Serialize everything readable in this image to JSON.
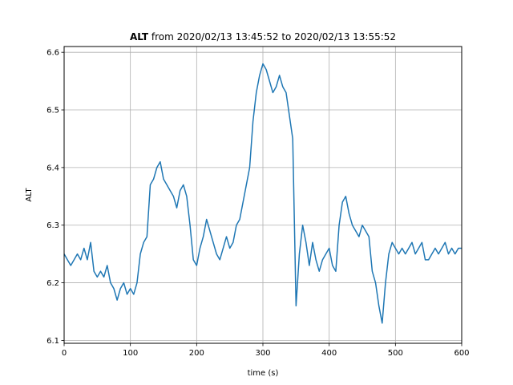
{
  "chart_data": {
    "type": "line",
    "title_bold": "ALT",
    "title_rest": " from 2020/02/13 13:45:52 to 2020/02/13 13:55:52",
    "xlabel": "time (s)",
    "ylabel": "ALT",
    "xlim": [
      0,
      600
    ],
    "ylim": [
      6.095,
      6.61
    ],
    "grid": true,
    "xticks": [
      0,
      100,
      200,
      300,
      400,
      500,
      600
    ],
    "xtick_labels": [
      "0",
      "100",
      "200",
      "300",
      "400",
      "500",
      "600"
    ],
    "yticks": [
      6.1,
      6.2,
      6.3,
      6.4,
      6.5,
      6.6
    ],
    "ytick_labels": [
      "6.1",
      "6.2",
      "6.3",
      "6.4",
      "6.5",
      "6.6"
    ],
    "line_color": "#1f77b4",
    "series": [
      {
        "x": [
          0,
          5,
          10,
          15,
          20,
          25,
          30,
          35,
          40,
          45,
          50,
          55,
          60,
          65,
          70,
          75,
          80,
          85,
          90,
          95,
          100,
          105,
          110,
          115,
          120,
          125,
          130,
          135,
          140,
          145,
          150,
          155,
          160,
          165,
          170,
          175,
          180,
          185,
          190,
          195,
          200,
          205,
          210,
          215,
          220,
          225,
          230,
          235,
          240,
          245,
          250,
          255,
          260,
          265,
          270,
          275,
          280,
          285,
          290,
          295,
          300,
          305,
          310,
          315,
          320,
          325,
          330,
          335,
          340,
          345,
          350,
          355,
          360,
          365,
          370,
          375,
          380,
          385,
          390,
          395,
          400,
          405,
          410,
          415,
          420,
          425,
          430,
          435,
          440,
          445,
          450,
          455,
          460,
          465,
          470,
          475,
          480,
          485,
          490,
          495,
          500,
          505,
          510,
          515,
          520,
          525,
          530,
          535,
          540,
          545,
          550,
          555,
          560,
          565,
          570,
          575,
          580,
          585,
          590,
          595,
          600
        ],
        "values": [
          6.25,
          6.24,
          6.23,
          6.24,
          6.25,
          6.24,
          6.26,
          6.24,
          6.27,
          6.22,
          6.21,
          6.22,
          6.21,
          6.23,
          6.2,
          6.19,
          6.17,
          6.19,
          6.2,
          6.18,
          6.19,
          6.18,
          6.2,
          6.25,
          6.27,
          6.28,
          6.37,
          6.38,
          6.4,
          6.41,
          6.38,
          6.37,
          6.36,
          6.35,
          6.33,
          6.36,
          6.37,
          6.35,
          6.3,
          6.24,
          6.23,
          6.26,
          6.28,
          6.31,
          6.29,
          6.27,
          6.25,
          6.24,
          6.26,
          6.28,
          6.26,
          6.27,
          6.3,
          6.31,
          6.34,
          6.37,
          6.4,
          6.48,
          6.53,
          6.56,
          6.58,
          6.57,
          6.55,
          6.53,
          6.54,
          6.56,
          6.54,
          6.53,
          6.49,
          6.45,
          6.16,
          6.25,
          6.3,
          6.27,
          6.23,
          6.27,
          6.24,
          6.22,
          6.24,
          6.25,
          6.26,
          6.23,
          6.22,
          6.3,
          6.34,
          6.35,
          6.32,
          6.3,
          6.29,
          6.28,
          6.3,
          6.29,
          6.28,
          6.22,
          6.2,
          6.16,
          6.13,
          6.2,
          6.25,
          6.27,
          6.26,
          6.25,
          6.26,
          6.25,
          6.26,
          6.27,
          6.25,
          6.26,
          6.27,
          6.24,
          6.24,
          6.25,
          6.26,
          6.25,
          6.26,
          6.27,
          6.25,
          6.26,
          6.25,
          6.26,
          6.26
        ]
      }
    ]
  }
}
